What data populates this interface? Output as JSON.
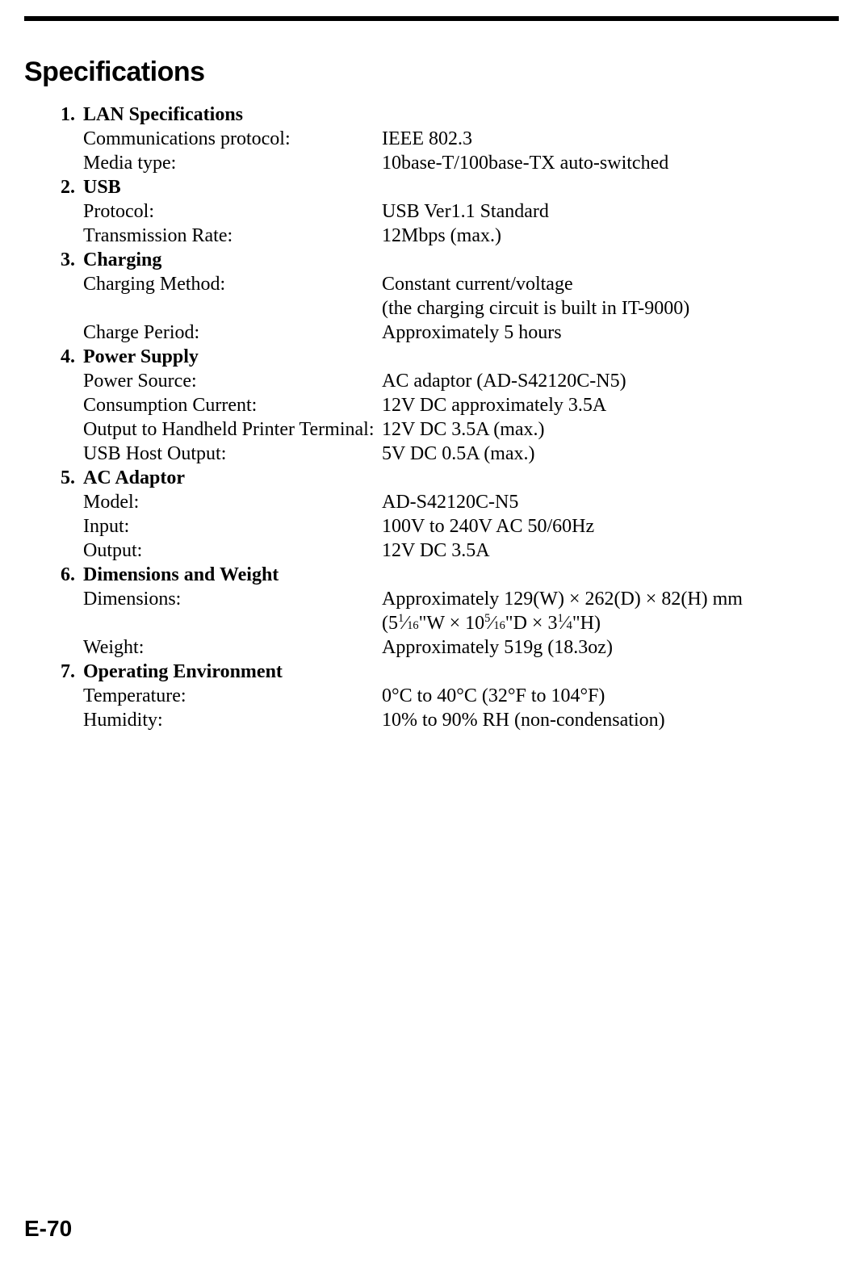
{
  "title": "Specifications",
  "sections": [
    {
      "num": "1.",
      "heading": "LAN Specifications",
      "rows": [
        {
          "label": "Communications protocol:",
          "value": "IEEE 802.3"
        },
        {
          "label": "Media type:",
          "value": "10base-T/100base-TX auto-switched"
        }
      ]
    },
    {
      "num": "2.",
      "heading": "USB",
      "rows": [
        {
          "label": "Protocol:",
          "value": "USB Ver1.1 Standard"
        },
        {
          "label": "Transmission Rate:",
          "value": "12Mbps (max.)"
        }
      ]
    },
    {
      "num": "3.",
      "heading": "Charging",
      "rows": [
        {
          "label": "Charging Method:",
          "value": "Constant current/voltage"
        },
        {
          "label": "",
          "value": "(the charging circuit is built in IT-9000)"
        },
        {
          "label": "Charge Period:",
          "value": "Approximately 5 hours"
        }
      ]
    },
    {
      "num": "4.",
      "heading": "Power Supply",
      "rows": [
        {
          "label": "Power Source:",
          "value": "AC adaptor (AD-S42120C-N5)"
        },
        {
          "label": "Consumption Current:",
          "value": "12V DC approximately 3.5A"
        },
        {
          "label": "Output to Handheld Printer Terminal:",
          "value": "12V DC 3.5A (max.)"
        },
        {
          "label": "USB Host Output:",
          "value": "5V DC 0.5A (max.)"
        }
      ]
    },
    {
      "num": "5.",
      "heading": "AC Adaptor",
      "rows": [
        {
          "label": "Model:",
          "value": "AD-S42120C-N5"
        },
        {
          "label": "Input:",
          "value": "100V to 240V AC 50/60Hz"
        },
        {
          "label": "Output:",
          "value": "12V DC 3.5A"
        }
      ]
    },
    {
      "num": "6.",
      "heading": "Dimensions and Weight",
      "rows": [
        {
          "label": "Dimensions:",
          "value": "Approximately 129(W) × 262(D) × 82(H) mm"
        },
        {
          "label": "",
          "value": "__DIMFRAC__"
        },
        {
          "label": "Weight:",
          "value": "Approximately 519g (18.3oz)"
        }
      ]
    },
    {
      "num": "7.",
      "heading": "Operating Environment",
      "rows": [
        {
          "label": "Temperature:",
          "value": "0°C to 40°C (32°F to 104°F)"
        },
        {
          "label": "Humidity:",
          "value": "10% to 90% RH (non-condensation)"
        }
      ]
    }
  ],
  "dimensions_frac": {
    "prefix": "(5",
    "w_num": "1",
    "w_den": "16",
    "mid1": "\"W × 10",
    "d_num": "5",
    "d_den": "16",
    "mid2": "\"D × 3",
    "h_num": "1",
    "h_den": "4",
    "suffix": "\"H)"
  },
  "page_number": "E-70"
}
